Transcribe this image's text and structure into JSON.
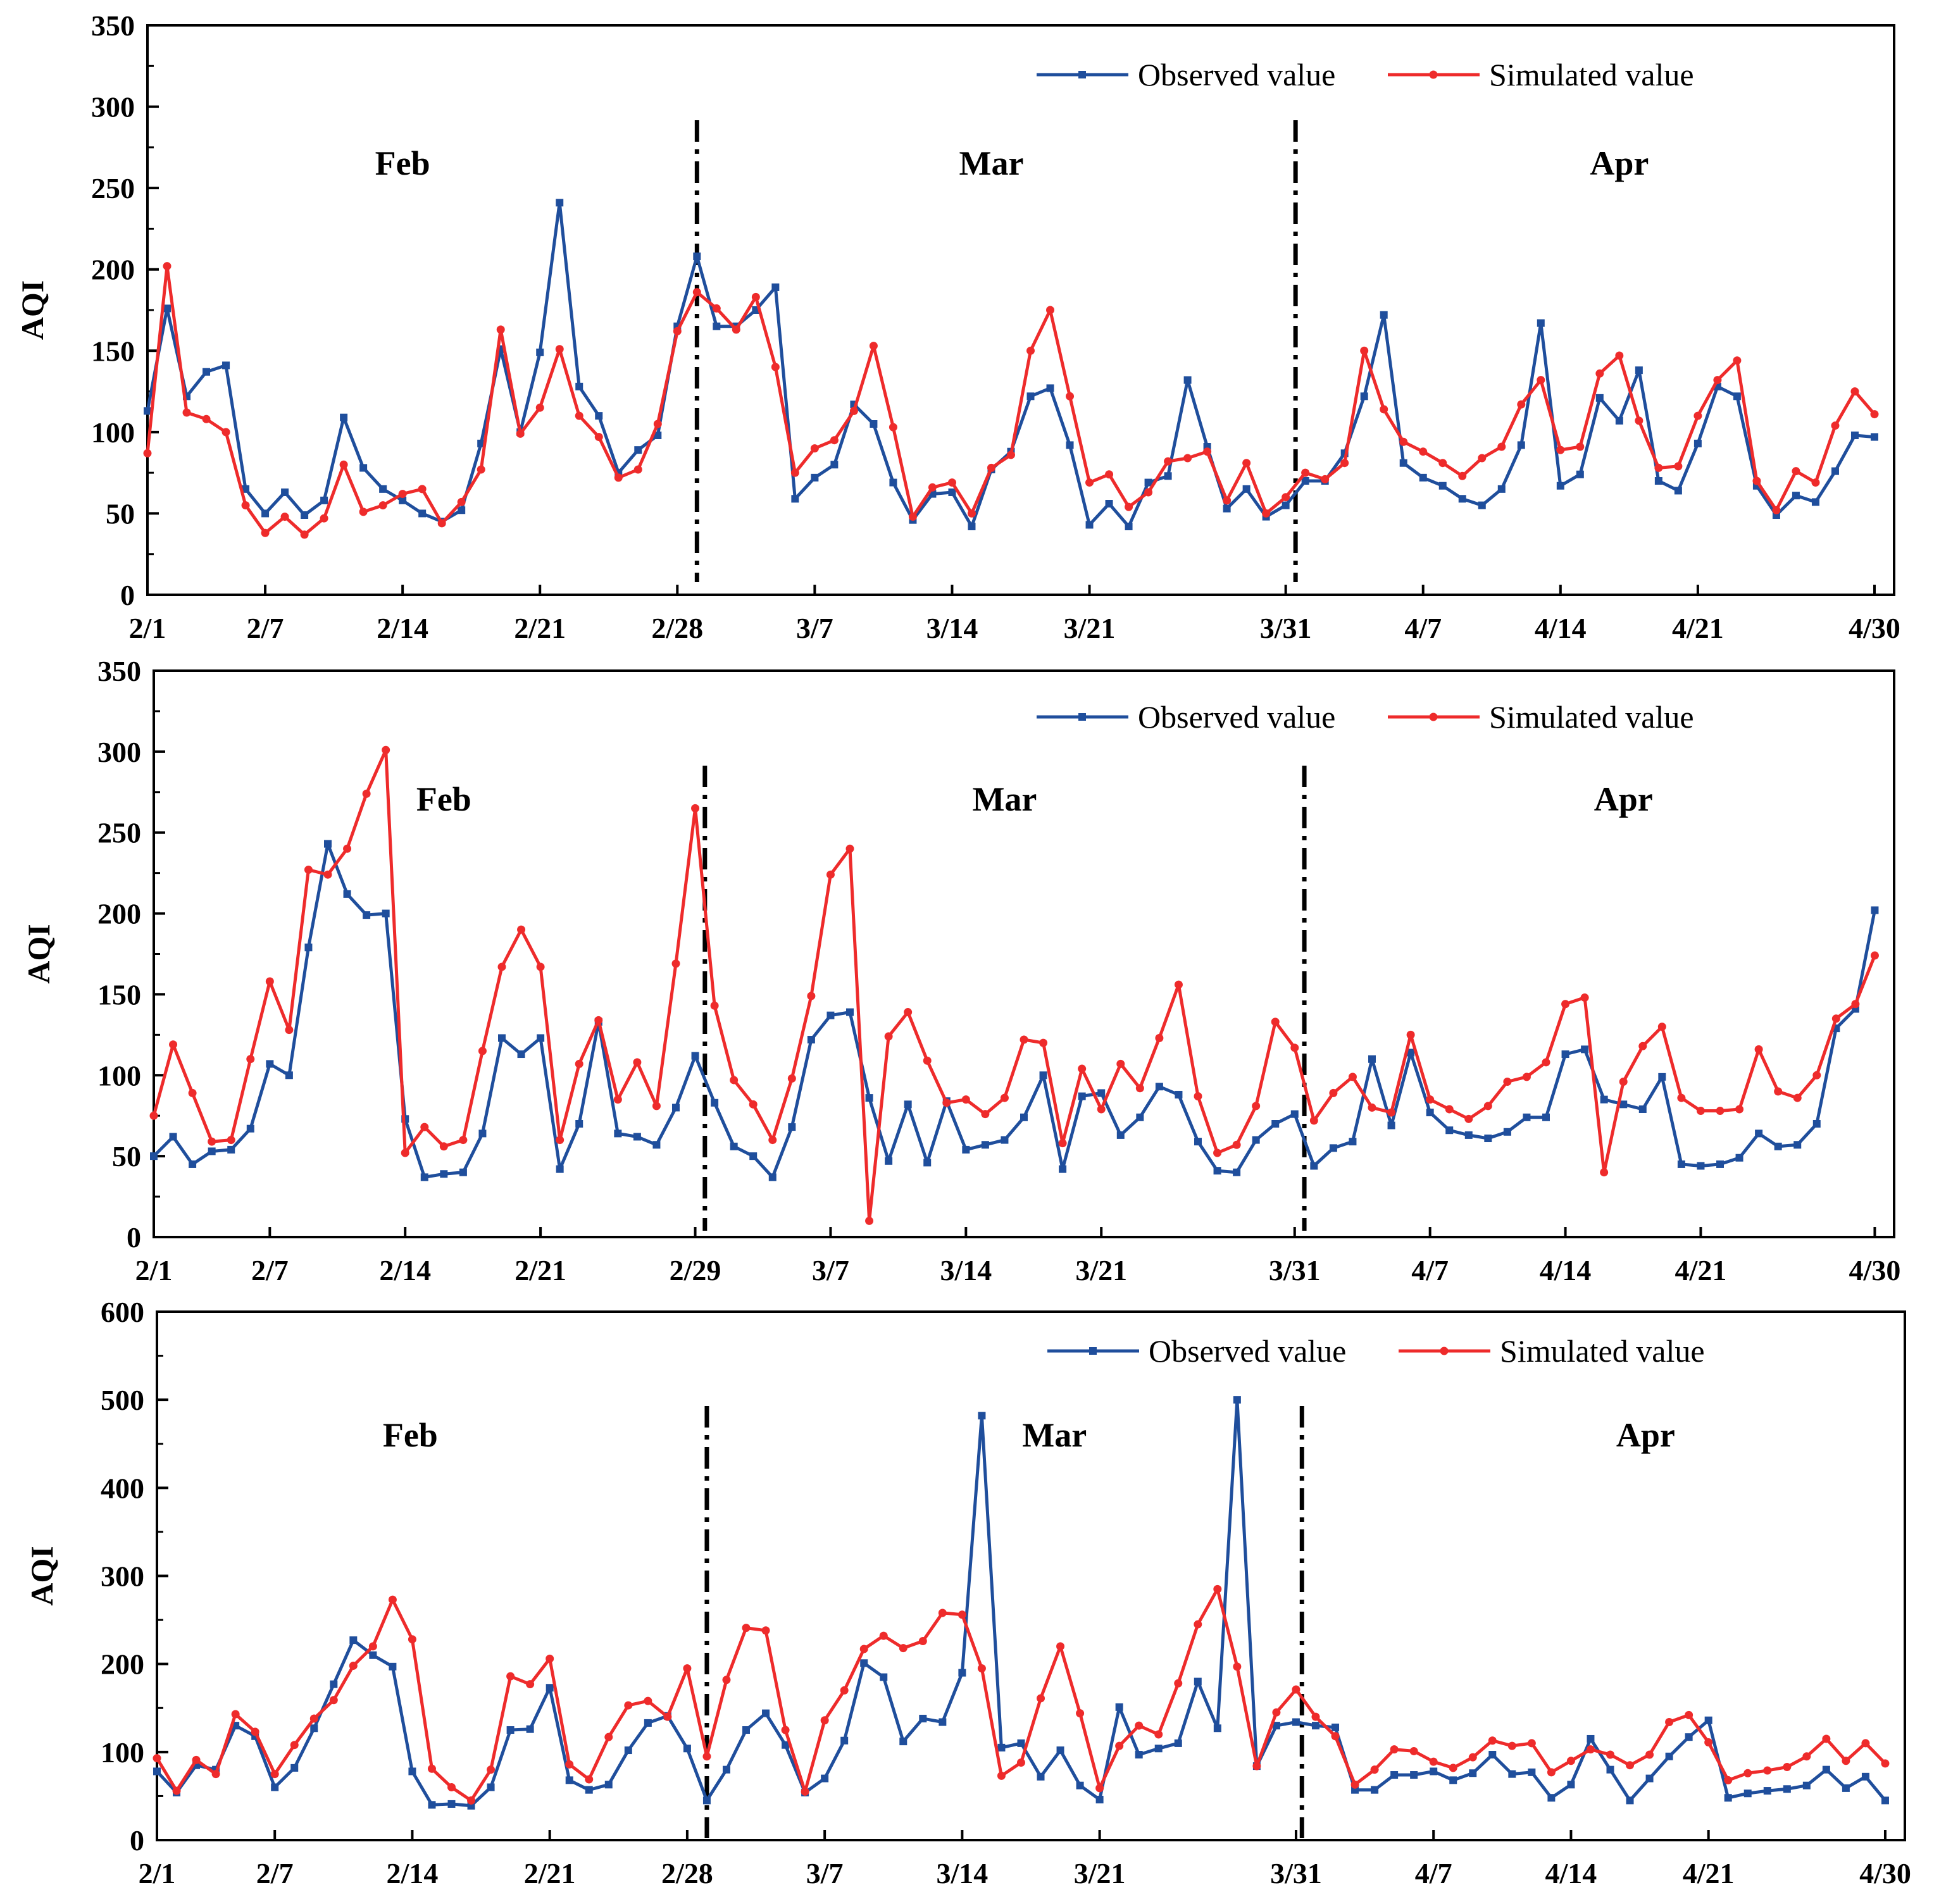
{
  "colors": {
    "observed": "#1f4e9c",
    "simulated": "#ee2b2b",
    "axis": "#000000"
  },
  "chart_data": [
    {
      "type": "line",
      "title": "",
      "ylabel": "AQI",
      "xlabel": "",
      "ylim": [
        0,
        350
      ],
      "yticks": [
        0,
        50,
        100,
        150,
        200,
        250,
        300,
        350
      ],
      "xlim": [
        1,
        90
      ],
      "xticks": [
        {
          "day": 1,
          "label": "2/1"
        },
        {
          "day": 7,
          "label": "2/7"
        },
        {
          "day": 14,
          "label": "2/14"
        },
        {
          "day": 21,
          "label": "2/21"
        },
        {
          "day": 28,
          "label": "2/28"
        },
        {
          "day": 35,
          "label": "3/7"
        },
        {
          "day": 42,
          "label": "3/14"
        },
        {
          "day": 49,
          "label": "3/21"
        },
        {
          "day": 59,
          "label": "3/31"
        },
        {
          "day": 66,
          "label": "4/7"
        },
        {
          "day": 73,
          "label": "4/14"
        },
        {
          "day": 80,
          "label": "4/21"
        },
        {
          "day": 89,
          "label": "4/30"
        }
      ],
      "dividers": [
        29,
        59.5
      ],
      "months": [
        {
          "label": "Feb",
          "day": 14
        },
        {
          "label": "Mar",
          "day": 44
        },
        {
          "label": "Apr",
          "day": 76
        }
      ],
      "series": [
        {
          "name": "Observed value",
          "values": [
            113,
            176,
            122,
            137,
            141,
            65,
            50,
            63,
            49,
            58,
            109,
            78,
            65,
            58,
            50,
            45,
            52,
            93,
            151,
            100,
            149,
            241,
            128,
            110,
            75,
            89,
            98,
            165,
            208,
            165,
            165,
            175,
            189,
            59,
            72,
            80,
            117,
            105,
            69,
            46,
            62,
            63,
            42,
            77,
            88,
            122,
            127,
            92,
            43,
            56,
            42,
            69,
            73,
            132,
            91,
            53,
            65,
            48,
            55,
            70,
            70,
            87,
            122,
            172,
            81,
            72,
            67,
            59,
            55,
            65,
            92,
            167,
            67,
            74,
            121,
            107,
            138,
            70,
            64,
            93,
            128,
            122,
            67,
            49,
            61,
            57,
            76,
            98,
            97
          ]
        },
        {
          "name": "Simulated value",
          "values": [
            87,
            202,
            112,
            108,
            100,
            55,
            38,
            48,
            37,
            47,
            80,
            51,
            55,
            62,
            65,
            44,
            57,
            77,
            163,
            99,
            115,
            151,
            110,
            97,
            72,
            77,
            105,
            162,
            186,
            176,
            163,
            183,
            140,
            75,
            90,
            95,
            113,
            153,
            103,
            48,
            66,
            69,
            50,
            78,
            86,
            150,
            175,
            122,
            69,
            74,
            54,
            63,
            82,
            84,
            88,
            58,
            81,
            50,
            60,
            75,
            71,
            81,
            150,
            114,
            94,
            88,
            81,
            73,
            84,
            91,
            117,
            132,
            89,
            91,
            136,
            147,
            107,
            78,
            79,
            110,
            132,
            144,
            70,
            52,
            76,
            69,
            104,
            125,
            111
          ]
        }
      ],
      "legend": [
        "Observed value",
        "Simulated value"
      ],
      "legend_position": "top-right"
    },
    {
      "type": "line",
      "title": "",
      "ylabel": "AQI",
      "xlabel": "",
      "ylim": [
        0,
        350
      ],
      "yticks": [
        0,
        50,
        100,
        150,
        200,
        250,
        300,
        350
      ],
      "xlim": [
        1,
        91
      ],
      "xticks": [
        {
          "day": 1,
          "label": "2/1"
        },
        {
          "day": 7,
          "label": "2/7"
        },
        {
          "day": 14,
          "label": "2/14"
        },
        {
          "day": 21,
          "label": "2/21"
        },
        {
          "day": 29,
          "label": "2/29"
        },
        {
          "day": 36,
          "label": "3/7"
        },
        {
          "day": 43,
          "label": "3/14"
        },
        {
          "day": 50,
          "label": "3/21"
        },
        {
          "day": 60,
          "label": "3/31"
        },
        {
          "day": 67,
          "label": "4/7"
        },
        {
          "day": 74,
          "label": "4/14"
        },
        {
          "day": 81,
          "label": "4/21"
        },
        {
          "day": 90,
          "label": "4/30"
        }
      ],
      "dividers": [
        29.5,
        60.5
      ],
      "months": [
        {
          "label": "Feb",
          "day": 16
        },
        {
          "label": "Mar",
          "day": 45
        },
        {
          "label": "Apr",
          "day": 77
        }
      ],
      "series": [
        {
          "name": "Observed value",
          "values": [
            50,
            62,
            45,
            53,
            54,
            67,
            107,
            100,
            179,
            243,
            212,
            199,
            200,
            73,
            37,
            39,
            40,
            64,
            123,
            113,
            123,
            42,
            70,
            133,
            64,
            62,
            57,
            80,
            112,
            83,
            56,
            50,
            37,
            68,
            122,
            137,
            139,
            86,
            47,
            82,
            46,
            84,
            54,
            57,
            60,
            74,
            100,
            42,
            87,
            89,
            63,
            74,
            93,
            88,
            59,
            41,
            40,
            60,
            70,
            76,
            44,
            55,
            59,
            110,
            69,
            114,
            77,
            66,
            63,
            61,
            65,
            74,
            74,
            113,
            116,
            85,
            82,
            79,
            99,
            45,
            44,
            45,
            49,
            64,
            56,
            57,
            70,
            129,
            141,
            202
          ]
        },
        {
          "name": "Simulated value",
          "values": [
            75,
            119,
            89,
            59,
            60,
            110,
            158,
            128,
            227,
            224,
            240,
            274,
            301,
            52,
            68,
            56,
            60,
            115,
            167,
            190,
            167,
            60,
            107,
            134,
            85,
            108,
            81,
            169,
            265,
            143,
            97,
            82,
            60,
            98,
            149,
            224,
            240,
            10,
            124,
            139,
            109,
            83,
            85,
            76,
            86,
            122,
            120,
            58,
            104,
            79,
            107,
            92,
            123,
            156,
            87,
            52,
            57,
            81,
            133,
            117,
            72,
            89,
            99,
            80,
            77,
            125,
            85,
            79,
            73,
            81,
            96,
            99,
            108,
            144,
            148,
            40,
            96,
            118,
            130,
            86,
            78,
            78,
            79,
            116,
            90,
            86,
            100,
            135,
            144,
            174
          ]
        }
      ],
      "legend": [
        "Observed value",
        "Simulated value"
      ],
      "legend_position": "top-right"
    },
    {
      "type": "line",
      "title": "",
      "ylabel": "AQI",
      "xlabel": "",
      "ylim": [
        0,
        600
      ],
      "yticks": [
        0,
        100,
        200,
        300,
        400,
        500,
        600
      ],
      "xlim": [
        1,
        90
      ],
      "xticks": [
        {
          "day": 1,
          "label": "2/1"
        },
        {
          "day": 7,
          "label": "2/7"
        },
        {
          "day": 14,
          "label": "2/14"
        },
        {
          "day": 21,
          "label": "2/21"
        },
        {
          "day": 28,
          "label": "2/28"
        },
        {
          "day": 35,
          "label": "3/7"
        },
        {
          "day": 42,
          "label": "3/14"
        },
        {
          "day": 49,
          "label": "3/21"
        },
        {
          "day": 59,
          "label": "3/31"
        },
        {
          "day": 66,
          "label": "4/7"
        },
        {
          "day": 73,
          "label": "4/14"
        },
        {
          "day": 80,
          "label": "4/21"
        },
        {
          "day": 89,
          "label": "4/30"
        }
      ],
      "dividers": [
        29,
        59.3
      ],
      "months": [
        {
          "label": "Feb",
          "day": 13.9
        },
        {
          "label": "Mar",
          "day": 46.7
        },
        {
          "label": "Apr",
          "day": 76.8
        }
      ],
      "series": [
        {
          "name": "Observed value",
          "values": [
            78,
            54,
            85,
            80,
            130,
            118,
            60,
            82,
            127,
            177,
            227,
            210,
            197,
            78,
            40,
            41,
            39,
            60,
            125,
            126,
            173,
            68,
            57,
            63,
            102,
            133,
            141,
            104,
            45,
            80,
            125,
            144,
            108,
            54,
            70,
            113,
            201,
            185,
            112,
            138,
            134,
            190,
            482,
            105,
            110,
            72,
            102,
            62,
            46,
            151,
            97,
            104,
            110,
            180,
            127,
            500,
            84,
            130,
            134,
            130,
            128,
            57,
            57,
            74,
            74,
            78,
            68,
            76,
            97,
            75,
            77,
            48,
            63,
            115,
            80,
            45,
            70,
            95,
            117,
            136,
            48,
            53,
            56,
            58,
            62,
            80,
            59,
            72,
            45
          ]
        },
        {
          "name": "Simulated value",
          "values": [
            93,
            56,
            91,
            75,
            143,
            123,
            75,
            108,
            138,
            159,
            198,
            220,
            273,
            228,
            81,
            60,
            45,
            80,
            186,
            177,
            206,
            86,
            69,
            117,
            153,
            158,
            140,
            195,
            95,
            182,
            241,
            238,
            125,
            55,
            136,
            170,
            217,
            232,
            218,
            226,
            258,
            256,
            195,
            73,
            88,
            161,
            220,
            144,
            59,
            107,
            130,
            120,
            178,
            245,
            285,
            197,
            84,
            145,
            171,
            140,
            118,
            63,
            80,
            103,
            101,
            89,
            82,
            94,
            113,
            107,
            110,
            77,
            90,
            103,
            97,
            85,
            97,
            134,
            142,
            111,
            68,
            76,
            79,
            83,
            95,
            115,
            90,
            110,
            87
          ]
        }
      ],
      "legend": [
        "Observed value",
        "Simulated value"
      ],
      "legend_position": "top-right"
    }
  ]
}
